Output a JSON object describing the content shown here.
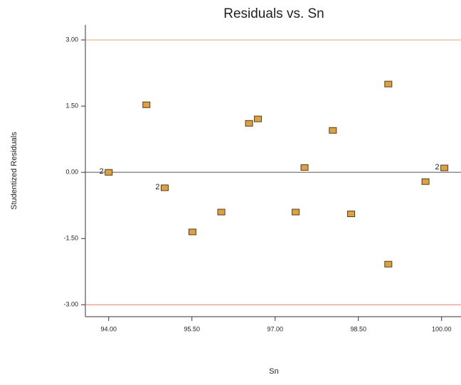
{
  "chart_data": {
    "type": "scatter",
    "title": "Residuals vs. Sn",
    "x_label": "Sn",
    "y_label": "Studentized Residuals",
    "x": [
      94.0,
      94.68,
      95.01,
      95.51,
      96.03,
      96.53,
      96.69,
      97.37,
      97.53,
      98.04,
      98.37,
      99.04,
      99.04,
      99.71,
      100.05
    ],
    "values": [
      0.0,
      1.53,
      -0.35,
      -1.35,
      -0.9,
      1.11,
      1.21,
      -0.9,
      0.11,
      0.95,
      -0.94,
      2.0,
      -2.08,
      -0.21,
      0.1
    ],
    "point_labels": [
      "2",
      null,
      "2",
      null,
      null,
      null,
      null,
      null,
      null,
      null,
      null,
      null,
      null,
      null,
      "2"
    ],
    "color": "#d9a24a",
    "xlim": [
      93.58,
      100.35
    ],
    "ylim": [
      -3.27,
      3.34
    ],
    "xticks": [
      {
        "value": 94,
        "label": "94.00"
      },
      {
        "value": 95.5,
        "label": "95.50"
      },
      {
        "value": 97,
        "label": "97.00"
      },
      {
        "value": 98.5,
        "label": "98.50"
      },
      {
        "value": 100,
        "label": "100.00"
      }
    ],
    "yticks": [
      {
        "value": 3,
        "label": "3.00"
      },
      {
        "value": 1.5,
        "label": "1.50"
      },
      {
        "value": 0,
        "label": "0.00"
      },
      {
        "value": -1.5,
        "label": "-1.50"
      },
      {
        "value": -3,
        "label": "-3.00"
      }
    ],
    "reference_lines": [
      {
        "value": 3,
        "color": "#e8a27a"
      },
      {
        "value": 0,
        "color": "#555555"
      },
      {
        "value": -3,
        "color": "#e07a6a"
      }
    ]
  }
}
